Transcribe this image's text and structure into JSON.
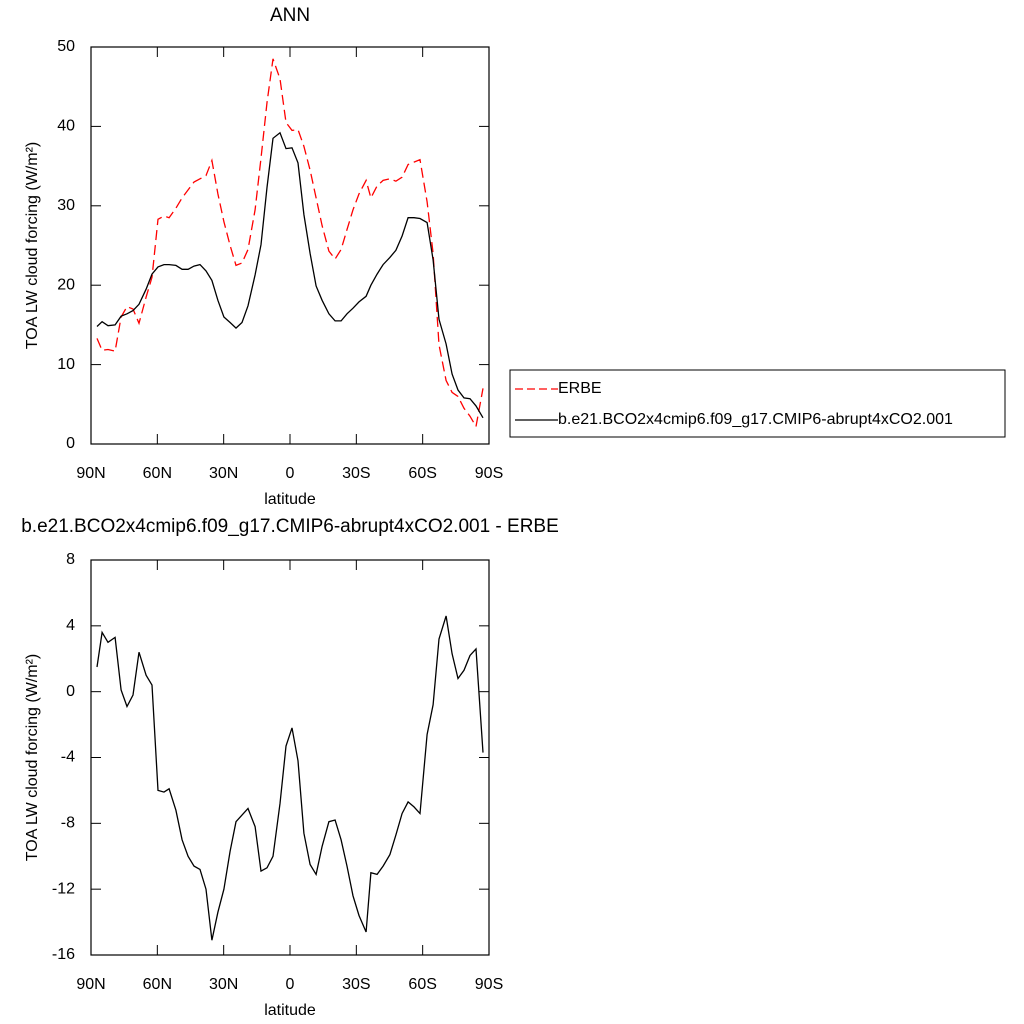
{
  "chart_data": [
    {
      "type": "line",
      "title": "ANN",
      "xlabel": "latitude",
      "ylabel": "TOA LW cloud forcing (W/m²)",
      "x": [
        87.3,
        85.0,
        82.3,
        79.1,
        76.4,
        73.7,
        71.0,
        68.3,
        65.1,
        62.4,
        59.7,
        57.0,
        54.7,
        51.6,
        48.8,
        46.1,
        43.4,
        40.7,
        38.0,
        35.3,
        32.6,
        29.9,
        27.1,
        24.4,
        21.7,
        19.0,
        15.8,
        13.1,
        10.4,
        7.7,
        4.5,
        1.8,
        -0.9,
        -3.6,
        -6.3,
        -9.1,
        -11.8,
        -14.5,
        -17.6,
        -20.4,
        -23.1,
        -25.8,
        -28.5,
        -31.2,
        -34.4,
        -36.6,
        -39.4,
        -42.1,
        -45.2,
        -47.9,
        -50.7,
        -53.4,
        -56.1,
        -58.8,
        -62.0,
        -64.7,
        -67.4,
        -70.6,
        -73.3,
        -76.0,
        -78.7,
        -81.4,
        -84.1,
        -87.3
      ],
      "series": [
        {
          "name": "ERBE",
          "color": "#ff0000",
          "style": "dashed",
          "values": [
            13.3,
            11.8,
            11.9,
            11.7,
            16,
            17.3,
            17,
            15.2,
            18.5,
            21,
            28.3,
            28.7,
            28.5,
            29.7,
            31,
            32,
            33,
            33.4,
            33.8,
            35.7,
            31.5,
            28,
            25,
            22.5,
            22.8,
            24.5,
            29.5,
            36,
            43,
            48.5,
            46,
            40.5,
            39.5,
            39.6,
            37.5,
            34.5,
            31,
            27.5,
            24.3,
            23.3,
            24.5,
            27,
            29.5,
            31.5,
            33.2,
            31,
            32.5,
            33.2,
            33.4,
            33.1,
            33.6,
            35.2,
            35.5,
            35.8,
            30.5,
            24,
            12.5,
            8,
            6.5,
            6,
            4.5,
            3.5,
            2.2,
            7
          ]
        },
        {
          "name": "b.e21.BCO2x4cmip6.f09_g17.CMIP6-abrupt4xCO2.001",
          "color": "#000000",
          "style": "solid",
          "values": [
            14.8,
            15.4,
            14.9,
            15,
            16.1,
            16.4,
            16.8,
            17.6,
            19.5,
            21.4,
            22.3,
            22.6,
            22.6,
            22.5,
            22,
            22,
            22.4,
            22.6,
            21.8,
            20.6,
            18.1,
            16,
            15.3,
            14.6,
            15.3,
            17.4,
            21.3,
            25.1,
            32.3,
            38.5,
            39.2,
            37.2,
            37.3,
            35.4,
            28.9,
            24,
            19.9,
            18.1,
            16.4,
            15.5,
            15.5,
            16.4,
            17.1,
            17.9,
            18.6,
            20,
            21.4,
            22.6,
            23.5,
            24.4,
            26.2,
            28.5,
            28.5,
            28.4,
            27.9,
            23.2,
            15.7,
            12.6,
            8.8,
            6.8,
            5.8,
            5.7,
            4.8,
            3.3
          ]
        }
      ],
      "xlim": [
        90,
        -90
      ],
      "xticks": [
        {
          "value": 90,
          "label": "90N"
        },
        {
          "value": 60,
          "label": "60N"
        },
        {
          "value": 30,
          "label": "30N"
        },
        0,
        {
          "value": -30,
          "label": "30S"
        },
        {
          "value": -60,
          "label": "60S"
        },
        {
          "value": -90,
          "label": "90S"
        }
      ],
      "ylim": [
        0,
        50
      ],
      "yticks": [
        0,
        10,
        20,
        30,
        40,
        50
      ],
      "legend": "right"
    },
    {
      "type": "line",
      "title": "b.e21.BCO2x4cmip6.f09_g17.CMIP6-abrupt4xCO2.001 - ERBE",
      "xlabel": "latitude",
      "ylabel": "TOA LW cloud forcing (W/m²)",
      "x": [
        87.3,
        85.0,
        82.3,
        79.1,
        76.4,
        73.7,
        71.0,
        68.3,
        65.1,
        62.4,
        59.7,
        57.0,
        54.7,
        51.6,
        48.8,
        46.1,
        43.4,
        40.7,
        38.0,
        35.3,
        32.6,
        29.9,
        27.1,
        24.4,
        21.7,
        19.0,
        15.8,
        13.1,
        10.4,
        7.7,
        4.5,
        1.8,
        -0.9,
        -3.6,
        -6.3,
        -9.1,
        -11.8,
        -14.5,
        -17.6,
        -20.4,
        -23.1,
        -25.8,
        -28.5,
        -31.2,
        -34.4,
        -36.6,
        -39.4,
        -42.1,
        -45.2,
        -47.9,
        -50.7,
        -53.4,
        -56.1,
        -58.8,
        -62.0,
        -64.7,
        -67.4,
        -70.6,
        -73.3,
        -76.0,
        -78.7,
        -81.4,
        -84.1,
        -87.3
      ],
      "values": [
        1.5,
        3.6,
        3.0,
        3.3,
        0.1,
        -0.9,
        -0.2,
        2.4,
        1.0,
        0.4,
        -6.0,
        -6.1,
        -5.9,
        -7.2,
        -9,
        -10,
        -10.6,
        -10.8,
        -12,
        -15.1,
        -13.4,
        -12,
        -9.7,
        -7.9,
        -7.5,
        -7.1,
        -8.2,
        -10.9,
        -10.7,
        -10,
        -6.8,
        -3.3,
        -2.2,
        -4.2,
        -8.6,
        -10.5,
        -11.1,
        -9.4,
        -7.9,
        -7.8,
        -9,
        -10.6,
        -12.4,
        -13.6,
        -14.6,
        -11,
        -11.1,
        -10.6,
        -9.9,
        -8.7,
        -7.4,
        -6.7,
        -7,
        -7.4,
        -2.6,
        -0.8,
        3.2,
        4.6,
        2.3,
        0.8,
        1.3,
        2.2,
        2.6,
        -3.7
      ],
      "color": "#000000",
      "xlim": [
        90,
        -90
      ],
      "xticks": [
        {
          "value": 90,
          "label": "90N"
        },
        {
          "value": 60,
          "label": "60N"
        },
        {
          "value": 30,
          "label": "30N"
        },
        0,
        {
          "value": -30,
          "label": "30S"
        },
        {
          "value": -60,
          "label": "60S"
        },
        {
          "value": -90,
          "label": "90S"
        }
      ],
      "ylim": [
        -16,
        8
      ],
      "yticks": [
        -16,
        -12,
        -8,
        -4,
        0,
        4,
        8
      ]
    }
  ]
}
